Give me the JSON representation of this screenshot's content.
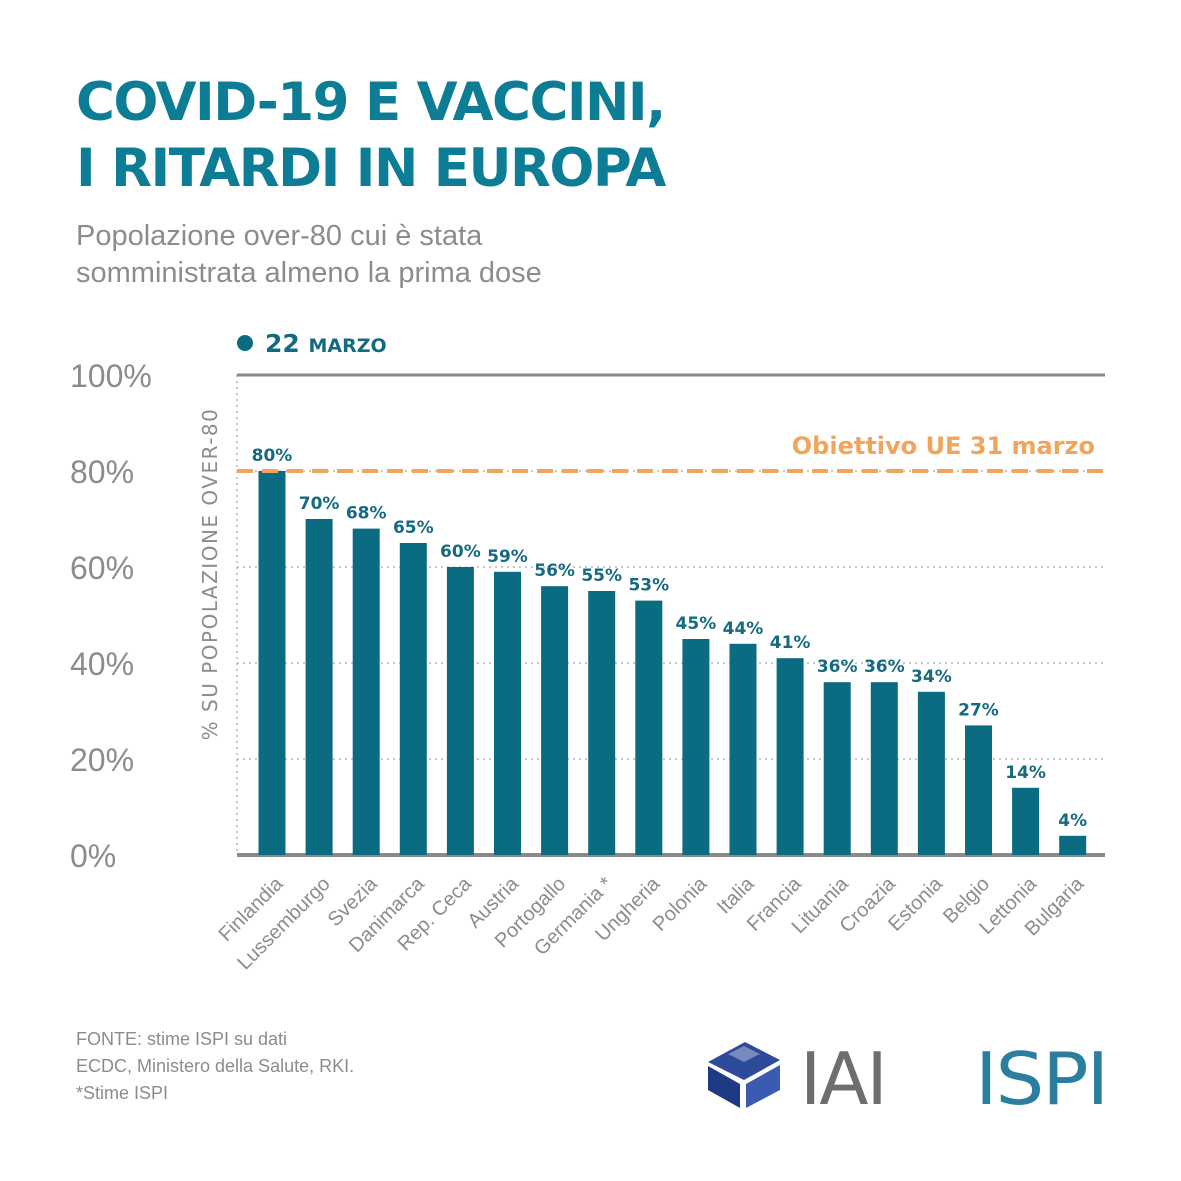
{
  "header": {
    "title_line1": "COVID-19 E VACCINI,",
    "title_line2": "I RITARDI IN EUROPA",
    "subtitle_line1": "Popolazione over-80 cui è stata",
    "subtitle_line2": "somministrata almeno la prima dose"
  },
  "colors": {
    "title": "#0d7d96",
    "bar": "#0b6b80",
    "label": "#156a80",
    "target": "#f0a55a",
    "muted": "#8c8c8c",
    "iai_blue": "#2e4a9a",
    "ispi": "#2a7fa0"
  },
  "chart_data": {
    "type": "bar",
    "legend": "22 MARZO",
    "ylabel": "% SU POPOLAZIONE OVER-80",
    "ylim": [
      0,
      100
    ],
    "yticks": [
      0,
      20,
      40,
      60,
      80,
      100
    ],
    "ytick_labels": [
      "0%",
      "20%",
      "40%",
      "60%",
      "80%",
      "100%"
    ],
    "grid": true,
    "categories": [
      "Finlandia",
      "Lussemburgo",
      "Svezia",
      "Danimarca",
      "Rep. Ceca",
      "Austria",
      "Portogallo",
      "Germania *",
      "Ungheria",
      "Polonia",
      "Italia",
      "Francia",
      "Lituania",
      "Croazia",
      "Estonia",
      "Belgio",
      "Lettonia",
      "Bulgaria"
    ],
    "values": [
      80,
      70,
      68,
      65,
      60,
      59,
      56,
      55,
      53,
      45,
      44,
      41,
      36,
      36,
      34,
      27,
      14,
      4
    ],
    "value_labels": [
      "80%",
      "70%",
      "68%",
      "65%",
      "60%",
      "59%",
      "56%",
      "55%",
      "53%",
      "45%",
      "44%",
      "41%",
      "36%",
      "36%",
      "34%",
      "27%",
      "14%",
      "4%"
    ],
    "target": {
      "value": 80,
      "label": "Obiettivo UE 31 marzo"
    }
  },
  "footer": {
    "source_line1": "FONTE: stime ISPI su dati",
    "source_line2": "ECDC, Ministero della Salute, RKI.",
    "source_line3": "*Stime ISPI",
    "logo_iai": "IAI",
    "logo_ispi": "ISPI"
  }
}
